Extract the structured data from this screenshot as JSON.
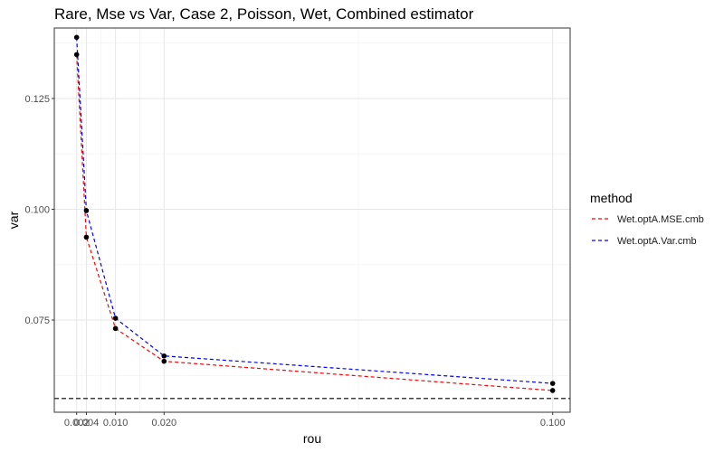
{
  "chart_data": {
    "type": "line",
    "title": "Rare, Mse vs Var, Case 2, Poisson, Wet, Combined estimator",
    "xlabel": "rou",
    "ylabel": "var",
    "xlim": [
      -0.0026,
      0.1036
    ],
    "ylim": [
      0.0542,
      0.1409
    ],
    "x_ticks": [
      0.002,
      0.004,
      0.01,
      0.02,
      0.1
    ],
    "x_tick_labels": [
      "0.002",
      "0.004",
      "0.010",
      "0.020",
      "0.100"
    ],
    "y_ticks": [
      0.075,
      0.1,
      0.125
    ],
    "y_tick_labels": [
      "0.075",
      "0.100",
      "0.125"
    ],
    "reference_line": {
      "y": 0.0573,
      "style": "dashed",
      "color": "#000000"
    },
    "grid": true,
    "legend": {
      "title": "method",
      "position": "right",
      "entries": [
        {
          "label": "Wet.optA.MSE.cmb",
          "color": "#ff0000"
        },
        {
          "label": "Wet.optA.Var.cmb",
          "color": "#0000ff"
        }
      ]
    },
    "series": [
      {
        "name": "Wet.optA.MSE.cmb",
        "color": "#ff0000",
        "x": [
          0.002,
          0.004,
          0.01,
          0.02,
          0.1
        ],
        "y": [
          0.1349,
          0.0937,
          0.0731,
          0.0657,
          0.0591
        ]
      },
      {
        "name": "Wet.optA.Var.cmb",
        "color": "#0000ff",
        "x": [
          0.002,
          0.004,
          0.01,
          0.02,
          0.1
        ],
        "y": [
          0.1388,
          0.0997,
          0.0754,
          0.0669,
          0.0607
        ]
      }
    ]
  }
}
